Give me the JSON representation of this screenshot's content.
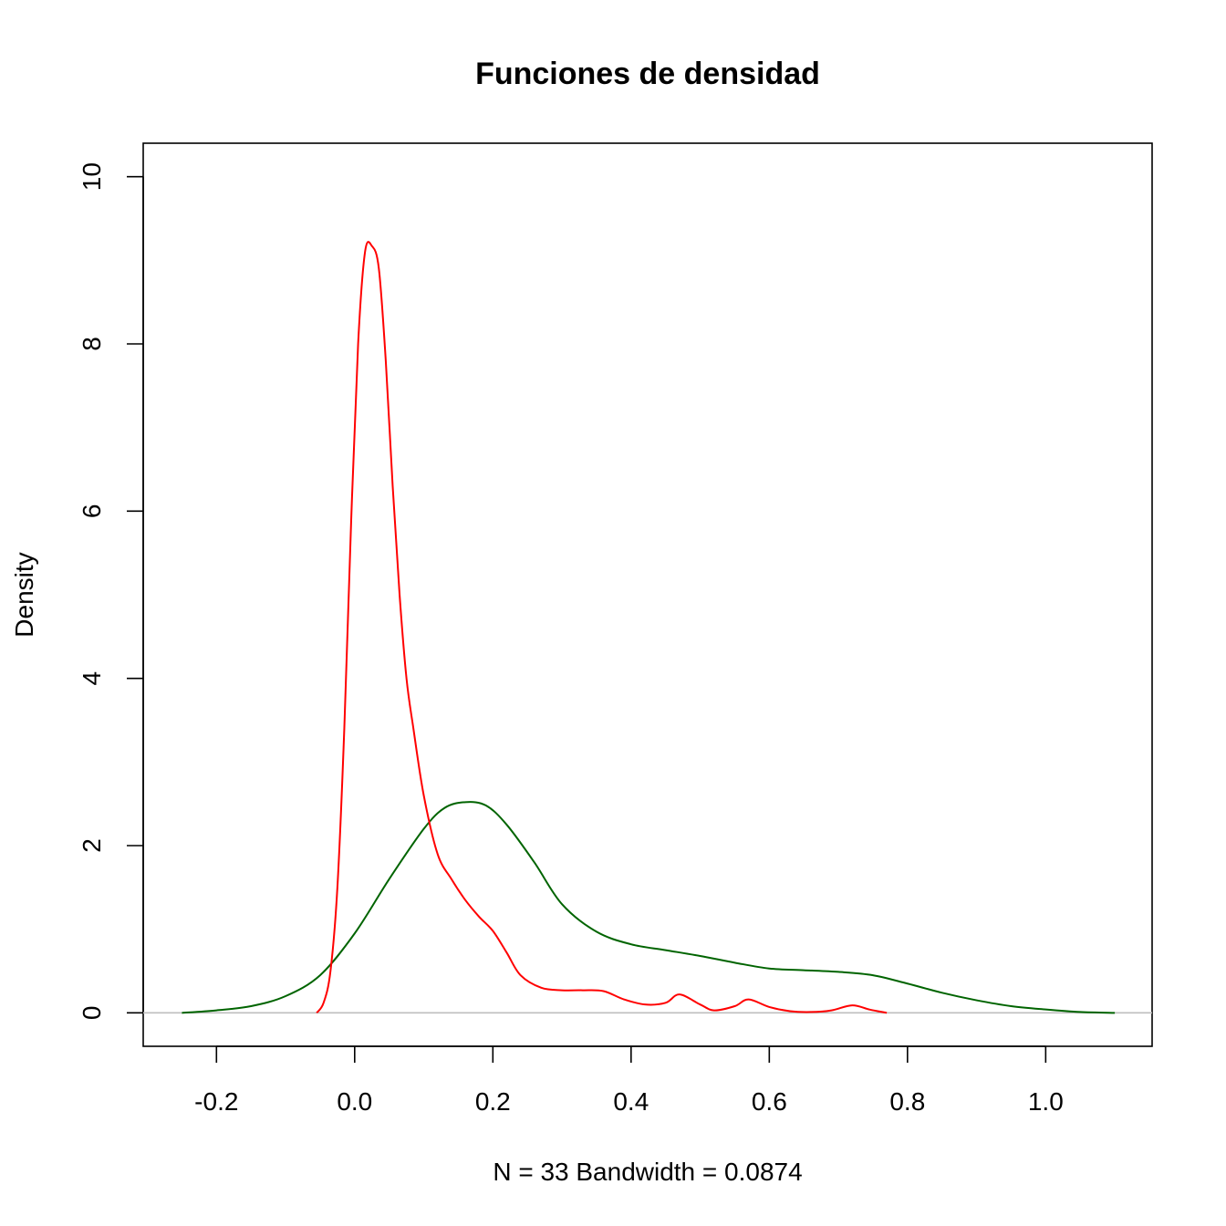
{
  "chart_data": {
    "type": "line",
    "title": "Funciones de densidad",
    "xlabel": "N = 33   Bandwidth = 0.0874",
    "ylabel": "Density",
    "xlim": [
      -0.306,
      1.154
    ],
    "ylim": [
      -0.4,
      10.4
    ],
    "x_ticks": [
      -0.2,
      0.0,
      0.2,
      0.4,
      0.6,
      0.8,
      1.0
    ],
    "x_tick_labels": [
      "-0.2",
      "0.0",
      "0.2",
      "0.4",
      "0.6",
      "0.8",
      "1.0"
    ],
    "y_ticks": [
      0,
      2,
      4,
      6,
      8,
      10
    ],
    "y_tick_labels": [
      "0",
      "2",
      "4",
      "6",
      "8",
      "10"
    ],
    "grid": false,
    "baseline": 0,
    "colors": {
      "baseline": "#bebebe",
      "frame": "#000000"
    },
    "series": [
      {
        "color": "#006400",
        "x": [
          -0.25,
          -0.2,
          -0.15,
          -0.1,
          -0.05,
          0.0,
          0.05,
          0.1,
          0.13,
          0.16,
          0.19,
          0.22,
          0.26,
          0.3,
          0.35,
          0.4,
          0.45,
          0.5,
          0.55,
          0.6,
          0.65,
          0.7,
          0.75,
          0.8,
          0.85,
          0.9,
          0.95,
          1.0,
          1.05,
          1.1
        ],
        "y": [
          0.0,
          0.03,
          0.08,
          0.2,
          0.45,
          0.95,
          1.6,
          2.2,
          2.45,
          2.52,
          2.48,
          2.25,
          1.8,
          1.3,
          0.97,
          0.82,
          0.75,
          0.68,
          0.6,
          0.53,
          0.51,
          0.49,
          0.45,
          0.35,
          0.24,
          0.15,
          0.08,
          0.04,
          0.01,
          0.0
        ]
      },
      {
        "color": "#ff0000",
        "x": [
          -0.055,
          -0.045,
          -0.035,
          -0.025,
          -0.015,
          -0.005,
          0.005,
          0.015,
          0.025,
          0.035,
          0.045,
          0.055,
          0.065,
          0.075,
          0.085,
          0.1,
          0.12,
          0.14,
          0.16,
          0.18,
          0.2,
          0.22,
          0.24,
          0.27,
          0.3,
          0.33,
          0.36,
          0.39,
          0.42,
          0.45,
          0.47,
          0.5,
          0.52,
          0.55,
          0.57,
          0.6,
          0.63,
          0.66,
          0.69,
          0.72,
          0.745,
          0.77
        ],
        "y": [
          0.0,
          0.12,
          0.5,
          1.5,
          3.4,
          5.9,
          8.0,
          9.1,
          9.17,
          8.9,
          7.8,
          6.3,
          5.0,
          4.0,
          3.4,
          2.6,
          1.9,
          1.6,
          1.35,
          1.15,
          0.98,
          0.72,
          0.45,
          0.3,
          0.27,
          0.27,
          0.26,
          0.16,
          0.1,
          0.12,
          0.22,
          0.1,
          0.03,
          0.08,
          0.16,
          0.07,
          0.02,
          0.01,
          0.03,
          0.09,
          0.04,
          0.0
        ]
      }
    ]
  }
}
